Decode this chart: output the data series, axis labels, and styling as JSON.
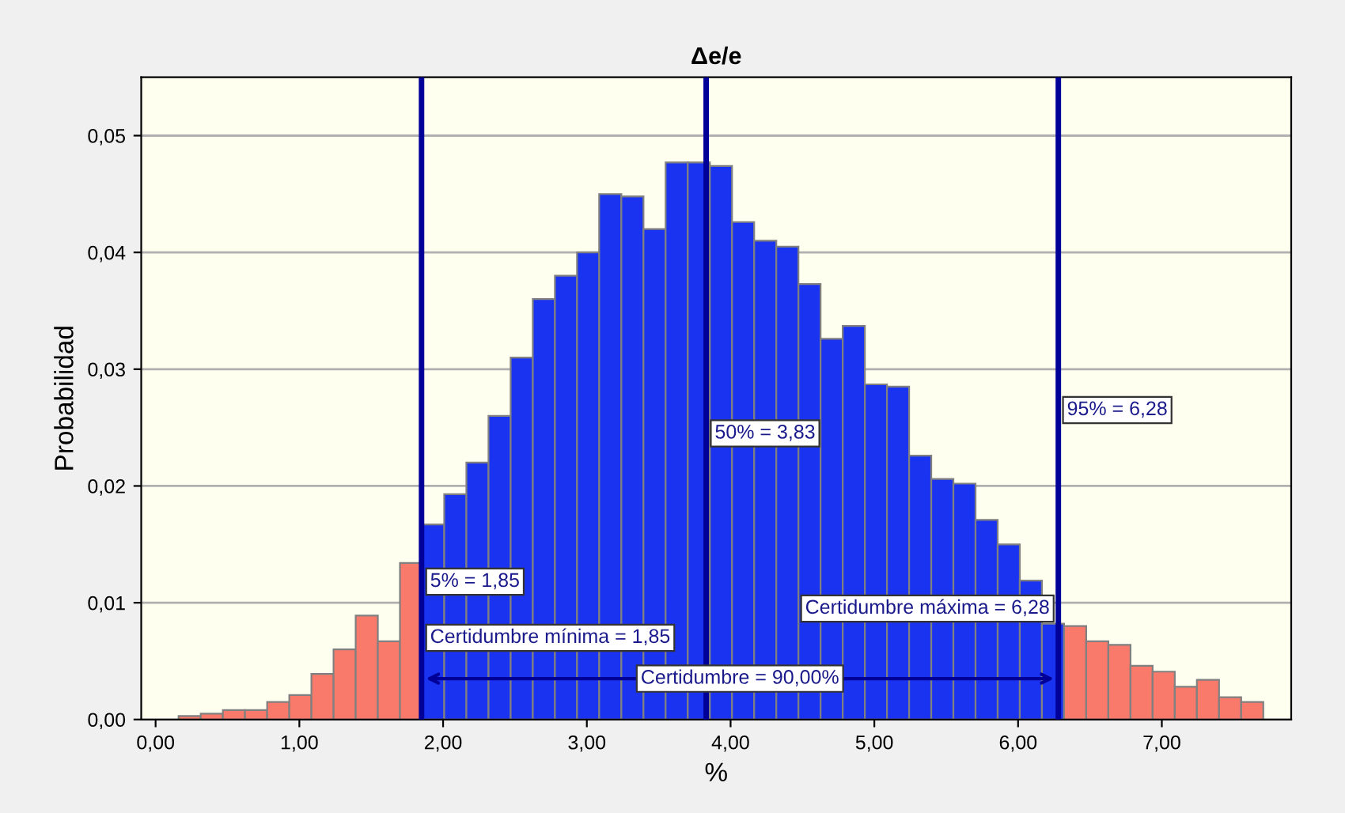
{
  "chart_data": {
    "type": "histogram",
    "title": "Δe/e",
    "xlabel": "%",
    "ylabel": "Probabilidad",
    "bins": [
      0.16,
      0.314,
      0.468,
      0.622,
      0.776,
      0.93,
      1.084,
      1.238,
      1.392,
      1.546,
      1.7,
      1.854,
      2.008,
      2.162,
      2.316,
      2.47,
      2.624,
      2.778,
      2.932,
      3.086,
      3.24,
      3.394,
      3.548,
      3.702,
      3.856,
      4.01,
      4.164,
      4.318,
      4.472,
      4.626,
      4.78,
      4.934,
      5.088,
      5.242,
      5.396,
      5.55,
      5.704,
      5.858,
      6.012,
      6.166,
      6.32,
      6.474,
      6.628,
      6.782,
      6.936,
      7.09,
      7.244,
      7.398,
      7.552,
      7.706
    ],
    "values": [
      0.0003,
      0.0005,
      0.0008,
      0.0008,
      0.0015,
      0.0021,
      0.0039,
      0.006,
      0.0089,
      0.0067,
      0.0134,
      0.0167,
      0.0193,
      0.022,
      0.026,
      0.031,
      0.036,
      0.038,
      0.04,
      0.045,
      0.0448,
      0.042,
      0.0477,
      0.0477,
      0.0474,
      0.0426,
      0.041,
      0.0405,
      0.0373,
      0.0326,
      0.0337,
      0.0287,
      0.0285,
      0.0226,
      0.0206,
      0.0202,
      0.0171,
      0.015,
      0.0119,
      0.0082,
      0.008,
      0.0067,
      0.0064,
      0.0046,
      0.0041,
      0.0028,
      0.0034,
      0.0019,
      0.0015
    ],
    "colors": [
      "#f97a6a",
      "#f97a6a",
      "#f97a6a",
      "#f97a6a",
      "#f97a6a",
      "#f97a6a",
      "#f97a6a",
      "#f97a6a",
      "#f97a6a",
      "#f97a6a",
      "#f97a6a",
      "#1a33f0",
      "#1a33f0",
      "#1a33f0",
      "#1a33f0",
      "#1a33f0",
      "#1a33f0",
      "#1a33f0",
      "#1a33f0",
      "#1a33f0",
      "#1a33f0",
      "#1a33f0",
      "#1a33f0",
      "#1a33f0",
      "#1a33f0",
      "#1a33f0",
      "#1a33f0",
      "#1a33f0",
      "#1a33f0",
      "#1a33f0",
      "#1a33f0",
      "#1a33f0",
      "#1a33f0",
      "#1a33f0",
      "#1a33f0",
      "#1a33f0",
      "#1a33f0",
      "#1a33f0",
      "#1a33f0",
      "#1a33f0",
      "#f97a6a",
      "#f97a6a",
      "#f97a6a",
      "#f97a6a",
      "#f97a6a",
      "#f97a6a",
      "#f97a6a",
      "#f97a6a",
      "#f97a6a"
    ],
    "xlim": [
      -0.1,
      7.9
    ],
    "ylim": [
      0,
      0.055
    ],
    "xticks": [
      {
        "value": 0,
        "label": "0,00"
      },
      {
        "value": 1,
        "label": "1,00"
      },
      {
        "value": 2,
        "label": "2,00"
      },
      {
        "value": 3,
        "label": "3,00"
      },
      {
        "value": 4,
        "label": "4,00"
      },
      {
        "value": 5,
        "label": "5,00"
      },
      {
        "value": 6,
        "label": "6,00"
      },
      {
        "value": 7,
        "label": "7,00"
      }
    ],
    "yticks": [
      {
        "value": 0,
        "label": "0,00"
      },
      {
        "value": 0.01,
        "label": "0,01"
      },
      {
        "value": 0.02,
        "label": "0,02"
      },
      {
        "value": 0.03,
        "label": "0,03"
      },
      {
        "value": 0.04,
        "label": "0,04"
      },
      {
        "value": 0.05,
        "label": "0,05"
      }
    ],
    "grid": "y",
    "ref_lines": [
      {
        "axis": "x",
        "value": 1.85,
        "label": "5% = 1,85",
        "color": "#000099"
      },
      {
        "axis": "x",
        "value": 3.83,
        "label": "50% = 3,83",
        "color": "#000099"
      },
      {
        "axis": "x",
        "value": 6.28,
        "label": "95% = 6,28",
        "color": "#000099"
      }
    ],
    "annotations": [
      {
        "text": "Certidumbre = 90,00%",
        "x": 4.065,
        "y": 0.0035
      },
      {
        "text": "Certidumbre mínima = 1,85",
        "x": 1.85,
        "y": 0.007
      },
      {
        "text": "Certidumbre máxima = 6,28",
        "x": 6.28,
        "y": 0.0095
      }
    ]
  }
}
